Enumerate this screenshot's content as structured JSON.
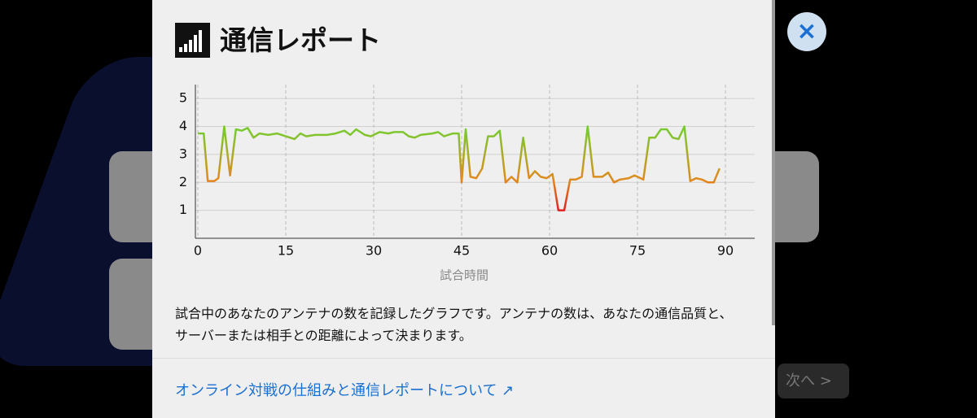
{
  "header": {
    "title": "通信レポート"
  },
  "chart": {
    "type": "line",
    "x_label": "試合時間",
    "x": [
      0,
      1,
      1.7,
      2.8,
      3.5,
      4.5,
      5.5,
      6.5,
      7.5,
      8.5,
      9.5,
      10.5,
      12,
      13.5,
      15,
      16.5,
      17.5,
      18.5,
      20,
      22,
      23.5,
      25,
      26,
      27,
      28.5,
      29.5,
      31,
      32.5,
      33.5,
      35,
      36,
      37,
      38,
      40,
      41,
      42,
      43.5,
      44.5,
      45,
      45.7,
      46.5,
      47.5,
      48.5,
      49.5,
      50.5,
      51.5,
      52.5,
      53.5,
      54.5,
      55.5,
      56.5,
      57.5,
      58.5,
      59.5,
      60.5,
      61.5,
      62.5,
      63.5,
      64.5,
      65.5,
      66.5,
      67.5,
      69,
      70,
      71,
      72,
      73.5,
      74.5,
      76,
      77,
      78,
      79,
      80,
      81,
      82,
      83,
      84,
      85,
      86,
      87,
      88,
      89
    ],
    "values": [
      3.75,
      3.75,
      2.05,
      2.05,
      2.15,
      4.0,
      2.25,
      3.9,
      3.85,
      3.95,
      3.6,
      3.75,
      3.7,
      3.75,
      3.65,
      3.55,
      3.75,
      3.65,
      3.7,
      3.7,
      3.75,
      3.85,
      3.7,
      3.9,
      3.7,
      3.65,
      3.8,
      3.75,
      3.8,
      3.8,
      3.65,
      3.6,
      3.7,
      3.75,
      3.8,
      3.65,
      3.75,
      3.75,
      2.0,
      3.9,
      2.2,
      2.15,
      2.5,
      3.65,
      3.65,
      3.85,
      2.0,
      2.2,
      2.0,
      3.6,
      2.15,
      2.4,
      2.2,
      2.15,
      2.3,
      1.0,
      1.0,
      2.1,
      2.1,
      2.2,
      4.0,
      2.2,
      2.2,
      2.35,
      2.0,
      2.1,
      2.15,
      2.25,
      2.1,
      3.6,
      3.6,
      3.9,
      3.9,
      3.6,
      3.55,
      4.0,
      2.05,
      2.15,
      2.1,
      2.0,
      2.0,
      2.5
    ],
    "xlim": [
      0,
      95
    ],
    "xticks": [
      0,
      15,
      30,
      45,
      60,
      75,
      90
    ],
    "ylim": [
      0,
      5.5
    ],
    "yticks": [
      1,
      2,
      3,
      4,
      5
    ],
    "grid": true
  },
  "description": "試合中のあなたのアンテナの数を記録したグラフです。アンテナの数は、あなたの通信品質と、サーバーまたは相手との距離によって決まります。",
  "link": "オンライン対戦の仕組みと通信レポートについて ↗",
  "background": {
    "next_button": "次へ"
  }
}
